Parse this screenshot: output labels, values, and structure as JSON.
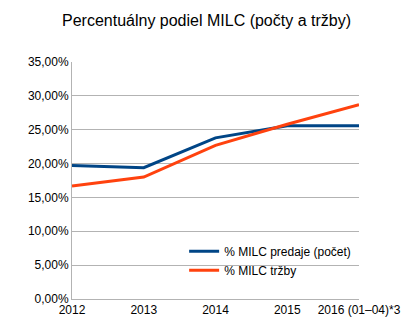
{
  "chart_data": {
    "type": "line",
    "title": "Percentuálny podiel MILC (počty a tržby)",
    "categories": [
      "2012",
      "2013",
      "2014",
      "2015",
      "2016 (01–04)*3"
    ],
    "series": [
      {
        "name": "% MILC predaje (počet)",
        "color": "#004586",
        "values": [
          19.7,
          19.4,
          23.8,
          25.6,
          25.6
        ]
      },
      {
        "name": "% MILC tržby",
        "color": "#ff420e",
        "values": [
          16.7,
          18.0,
          22.7,
          25.8,
          28.7
        ]
      }
    ],
    "ylim": [
      0,
      35
    ],
    "yticks": [
      {
        "value": 0,
        "label": "0,00%"
      },
      {
        "value": 5,
        "label": "5,00%"
      },
      {
        "value": 10,
        "label": "10,00%"
      },
      {
        "value": 15,
        "label": "15,00%"
      },
      {
        "value": 20,
        "label": "20,00%"
      },
      {
        "value": 25,
        "label": "25,00%"
      },
      {
        "value": 30,
        "label": "30,00%"
      },
      {
        "value": 35,
        "label": "35,00%"
      }
    ],
    "grid": true,
    "legend": "lower right"
  }
}
